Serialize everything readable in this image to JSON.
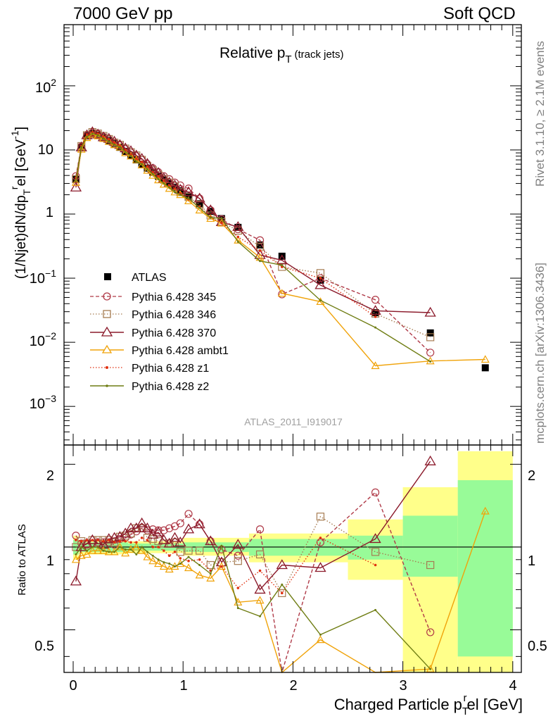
{
  "header": {
    "left": "7000 GeV pp",
    "right": "Soft QCD"
  },
  "sidebar": {
    "rivet": "Rivet 3.1.10, ≥ 2.1M events",
    "source": "mcplots.cern.ch [arXiv:1306.3436]"
  },
  "main_panel": {
    "title": "Relative p",
    "title_sub": "T",
    "title_suffix": " (track jets)",
    "ylabel": "(1/Njet)dN/dp",
    "ylabel_sub": "T",
    "ylabel_sup": "r",
    "ylabel_mid": "el [GeV",
    "ylabel_sup2": "-1",
    "ylabel_end": "]",
    "watermark": "ATLAS_2011_I919017",
    "ytick_labels": [
      {
        "base": "10",
        "exp": "2"
      },
      {
        "base": "10",
        "exp": ""
      },
      {
        "base": "1",
        "exp": ""
      },
      {
        "base": "10",
        "exp": "−1"
      },
      {
        "base": "10",
        "exp": "−2"
      },
      {
        "base": "10",
        "exp": "−3"
      }
    ]
  },
  "ratio_panel": {
    "ylabel": "Ratio to ATLAS",
    "ytick_labels": [
      "2",
      "1",
      "0.5"
    ]
  },
  "xaxis": {
    "label": "Charged Particle p",
    "label_sub": "T",
    "label_sup": "r",
    "label_end": "el [GeV]",
    "tick_labels": [
      "0",
      "1",
      "2",
      "3",
      "4"
    ]
  },
  "legend": [
    "ATLAS",
    "Pythia 6.428 345",
    "Pythia 6.428 346",
    "Pythia 6.428 370",
    "Pythia 6.428 ambt1",
    "Pythia 6.428 z1",
    "Pythia 6.428 z2"
  ],
  "colors": {
    "ATLAS": "#000000",
    "345": "#b03a48",
    "346": "#a67c52",
    "370": "#8b1a2b",
    "ambt1": "#f0a30a",
    "z1": "#e03010",
    "z2": "#6f7d13",
    "band_inner": "#98fb98",
    "band_outer": "#ffff8a"
  },
  "chart_data": {
    "type": "scatter",
    "xlabel": "Charged Particle pTrel [GeV]",
    "ylabel": "(1/Njet)dN/dpTrel [GeV^-1]",
    "xlim": [
      -0.1,
      4.05
    ],
    "ylim": [
      0.00025,
      900
    ],
    "ratio_ylim": [
      0.35,
      2.35
    ],
    "yscale": "log",
    "ratio_yscale": "log",
    "x": [
      0.025,
      0.075,
      0.125,
      0.175,
      0.225,
      0.275,
      0.325,
      0.375,
      0.425,
      0.475,
      0.525,
      0.575,
      0.625,
      0.675,
      0.725,
      0.775,
      0.825,
      0.875,
      0.925,
      0.975,
      1.05,
      1.15,
      1.25,
      1.35,
      1.5,
      1.7,
      1.9,
      2.25,
      2.75,
      3.25,
      3.75
    ],
    "series": [
      {
        "name": "ATLAS",
        "values": [
          3.5,
          11.0,
          16.5,
          18.0,
          17.0,
          15.5,
          14.0,
          12.5,
          11.0,
          9.5,
          8.2,
          7.0,
          6.0,
          5.2,
          4.5,
          3.9,
          3.4,
          3.0,
          2.6,
          2.3,
          1.9,
          1.45,
          1.1,
          0.85,
          0.62,
          0.33,
          0.22,
          0.093,
          0.029,
          0.014,
          0.004
        ]
      },
      {
        "name": "Pythia 6.428 345",
        "values": [
          3.9,
          11.3,
          16.8,
          18.5,
          17.7,
          16.1,
          14.6,
          12.8,
          11.8,
          10.3,
          9.1,
          8.0,
          7.0,
          6.0,
          5.2,
          4.5,
          3.9,
          3.5,
          3.1,
          2.8,
          2.5,
          1.75,
          1.15,
          0.83,
          0.58,
          0.39,
          0.056,
          0.1,
          0.046,
          0.0069,
          null
        ]
      },
      {
        "name": "Pythia 6.428 346",
        "values": [
          3.5,
          11.5,
          17.0,
          19.0,
          18.0,
          16.5,
          14.8,
          13.0,
          12.0,
          10.5,
          9.2,
          8.2,
          7.0,
          5.6,
          4.8,
          4.1,
          3.5,
          3.1,
          2.7,
          2.2,
          1.85,
          1.4,
          0.95,
          0.75,
          0.55,
          0.31,
          0.15,
          0.12,
          0.028,
          0.012,
          null
        ]
      },
      {
        "name": "Pythia 6.428 370",
        "values": [
          2.6,
          11.0,
          17.0,
          19.0,
          17.5,
          15.8,
          15.0,
          13.5,
          12.0,
          10.6,
          9.6,
          8.2,
          7.3,
          6.1,
          5.0,
          4.4,
          3.6,
          3.1,
          2.8,
          2.4,
          2.2,
          1.75,
          1.15,
          0.75,
          0.63,
          0.23,
          0.19,
          0.078,
          0.031,
          0.029,
          null
        ]
      },
      {
        "name": "Pythia 6.428 ambt1",
        "values": [
          3.1,
          10.2,
          15.5,
          17.5,
          16.5,
          15.0,
          13.5,
          12.0,
          11.0,
          9.0,
          8.0,
          7.0,
          5.8,
          4.8,
          4.0,
          3.4,
          2.9,
          2.5,
          2.2,
          2.0,
          1.6,
          1.15,
          0.85,
          0.72,
          0.39,
          0.21,
          0.058,
          0.043,
          0.0043,
          0.0051,
          0.0054
        ]
      },
      {
        "name": "Pythia 6.428 z1",
        "values": [
          3.7,
          11.5,
          17.5,
          19.0,
          18.0,
          16.2,
          14.8,
          13.0,
          11.5,
          10.0,
          8.5,
          7.3,
          6.5,
          5.5,
          4.5,
          3.9,
          3.3,
          2.8,
          2.5,
          2.1,
          1.7,
          1.3,
          0.9,
          0.72,
          0.44,
          0.27,
          0.15,
          0.1,
          0.025,
          null,
          null
        ]
      },
      {
        "name": "Pythia 6.428 z2",
        "values": [
          3.3,
          11.0,
          16.0,
          18.0,
          17.0,
          15.0,
          13.5,
          12.0,
          11.0,
          9.3,
          8.0,
          6.6,
          6.0,
          5.0,
          4.2,
          3.5,
          3.0,
          2.6,
          2.2,
          2.0,
          1.75,
          1.25,
          0.88,
          0.86,
          0.37,
          0.185,
          0.16,
          0.045,
          0.017,
          0.005,
          null
        ]
      }
    ],
    "ratio_series": [
      {
        "name": "Pythia 6.428 345",
        "values": [
          1.1,
          1.03,
          1.02,
          1.03,
          1.04,
          1.04,
          1.04,
          1.02,
          1.07,
          1.08,
          1.11,
          1.14,
          1.17,
          1.15,
          1.16,
          1.15,
          1.15,
          1.17,
          1.19,
          1.22,
          1.32,
          1.21,
          1.05,
          0.98,
          0.93,
          1.16,
          0.25,
          1.04,
          1.58,
          0.49,
          null
        ]
      },
      {
        "name": "Pythia 6.428 346",
        "values": [
          1.0,
          1.05,
          1.03,
          1.06,
          1.06,
          1.06,
          1.06,
          1.04,
          1.09,
          1.1,
          1.12,
          1.17,
          1.17,
          1.08,
          1.07,
          1.05,
          1.03,
          1.03,
          1.04,
          0.96,
          0.97,
          0.97,
          0.86,
          0.88,
          0.89,
          0.94,
          0.68,
          1.29,
          0.96,
          0.86,
          null
        ]
      },
      {
        "name": "Pythia 6.428 370",
        "values": [
          0.75,
          1.0,
          1.03,
          1.06,
          1.03,
          1.02,
          1.07,
          1.08,
          1.09,
          1.12,
          1.17,
          1.17,
          1.22,
          1.17,
          1.11,
          1.13,
          1.06,
          1.03,
          1.08,
          1.04,
          1.16,
          1.21,
          1.05,
          0.88,
          1.02,
          0.7,
          0.86,
          0.84,
          1.07,
          2.05,
          null
        ]
      },
      {
        "name": "Pythia 6.428 ambt1",
        "values": [
          0.9,
          0.93,
          0.94,
          0.97,
          0.97,
          0.97,
          0.96,
          0.96,
          1.0,
          0.95,
          0.98,
          1.0,
          0.97,
          0.92,
          0.89,
          0.87,
          0.85,
          0.83,
          0.85,
          0.87,
          0.84,
          0.79,
          0.77,
          0.85,
          0.63,
          0.64,
          0.26,
          0.46,
          0.15,
          0.36,
          1.35
        ]
      },
      {
        "name": "Pythia 6.428 z1",
        "values": [
          1.06,
          1.05,
          1.06,
          1.06,
          1.06,
          1.05,
          1.06,
          1.04,
          1.05,
          1.05,
          1.04,
          1.04,
          1.08,
          1.06,
          1.0,
          1.0,
          0.97,
          0.93,
          0.96,
          0.91,
          0.89,
          0.9,
          0.82,
          0.85,
          0.71,
          0.82,
          0.68,
          1.08,
          0.86,
          null,
          null
        ]
      },
      {
        "name": "Pythia 6.428 z2",
        "values": [
          0.94,
          1.0,
          0.97,
          1.0,
          1.0,
          0.97,
          0.96,
          0.96,
          1.0,
          0.98,
          0.98,
          0.94,
          1.0,
          0.96,
          0.93,
          0.9,
          0.88,
          0.87,
          0.85,
          0.87,
          0.92,
          0.86,
          0.8,
          1.01,
          0.6,
          0.56,
          0.73,
          0.48,
          0.59,
          0.36,
          null
        ]
      }
    ],
    "ratio_band": [
      {
        "x0": 0.0,
        "x1": 0.05,
        "inner": [
          0.94,
          1.06
        ],
        "outer": [
          0.9,
          1.1
        ]
      },
      {
        "x0": 0.05,
        "x1": 0.5,
        "inner": [
          0.96,
          1.04
        ],
        "outer": [
          0.94,
          1.06
        ]
      },
      {
        "x0": 0.5,
        "x1": 1.0,
        "inner": [
          0.97,
          1.03
        ],
        "outer": [
          0.95,
          1.05
        ]
      },
      {
        "x0": 1.0,
        "x1": 1.6,
        "inner": [
          0.96,
          1.04
        ],
        "outer": [
          0.93,
          1.08
        ]
      },
      {
        "x0": 1.6,
        "x1": 2.5,
        "inner": [
          0.93,
          1.07
        ],
        "outer": [
          0.88,
          1.12
        ]
      },
      {
        "x0": 2.5,
        "x1": 3.0,
        "inner": [
          0.9,
          1.1
        ],
        "outer": [
          0.76,
          1.26
        ]
      },
      {
        "x0": 3.0,
        "x1": 3.5,
        "inner": [
          0.78,
          1.3
        ],
        "outer": [
          0.34,
          1.65
        ]
      },
      {
        "x0": 3.5,
        "x1": 4.0,
        "inner": [
          0.4,
          1.75
        ],
        "outer": [
          0.34,
          2.23
        ]
      }
    ]
  }
}
